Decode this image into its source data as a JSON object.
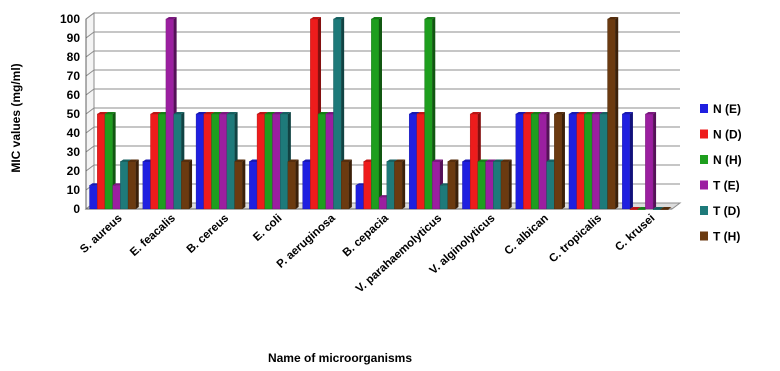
{
  "chart_data": {
    "type": "bar",
    "title": "",
    "xlabel": "Name of microorganisms",
    "ylabel": "MIC values (mg/ml)",
    "ylim": [
      0,
      100
    ],
    "yticks": [
      0,
      10,
      20,
      30,
      40,
      50,
      60,
      70,
      80,
      90,
      100
    ],
    "grid": true,
    "legend_position": "right",
    "categories": [
      "S. aureus",
      "E. feacalis",
      "B. cereus",
      "E. coli",
      "P. aeruginosa",
      "B. cepacia",
      "V. parahaemolyticus",
      "V. alginolyticus",
      "C. albican",
      "C. tropicalis",
      "C. krusei"
    ],
    "series": [
      {
        "name": "N (E)",
        "color": "#1f1fe0",
        "values": [
          12.5,
          25,
          50,
          25,
          25,
          12.5,
          50,
          25,
          50,
          50,
          50
        ]
      },
      {
        "name": "N (D)",
        "color": "#ee1c1c",
        "values": [
          50,
          50,
          50,
          50,
          100,
          25,
          50,
          50,
          50,
          50,
          0
        ]
      },
      {
        "name": "N (H)",
        "color": "#1e9e1e",
        "values": [
          50,
          50,
          50,
          50,
          50,
          100,
          100,
          25,
          50,
          50,
          0
        ]
      },
      {
        "name": "T (E)",
        "color": "#9b1fa0",
        "values": [
          12.5,
          100,
          50,
          50,
          50,
          6.25,
          25,
          25,
          50,
          50,
          50
        ]
      },
      {
        "name": "T (D)",
        "color": "#1e7a7a",
        "values": [
          25,
          50,
          50,
          50,
          100,
          25,
          12.5,
          25,
          25,
          50,
          0
        ]
      },
      {
        "name": "T (H)",
        "color": "#6b3a10",
        "values": [
          25,
          25,
          25,
          25,
          25,
          25,
          25,
          25,
          50,
          100,
          0
        ]
      }
    ]
  }
}
